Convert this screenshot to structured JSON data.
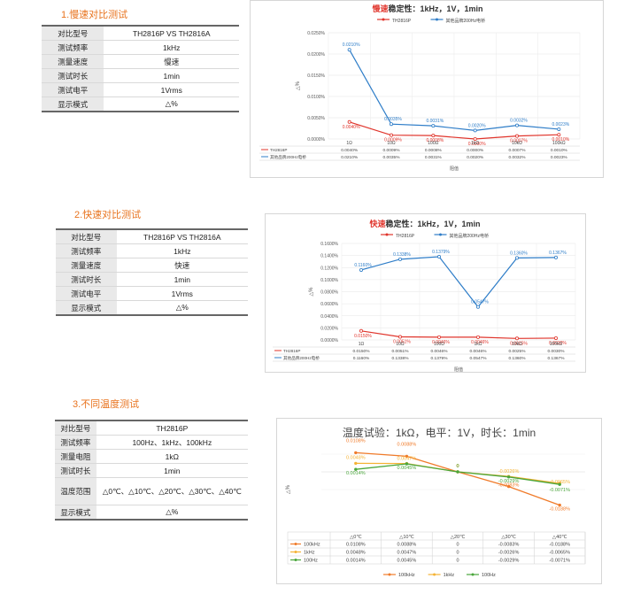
{
  "sections": [
    {
      "title": "1.慢速对比测试",
      "rows": [
        [
          "对比型号",
          "TH2816P VS TH2816A"
        ],
        [
          "测试频率",
          "1kHz"
        ],
        [
          "测量速度",
          "慢速"
        ],
        [
          "测试时长",
          "1min"
        ],
        [
          "测试电平",
          "1Vrms"
        ],
        [
          "显示模式",
          "△%"
        ]
      ]
    },
    {
      "title": "2.快速对比测试",
      "rows": [
        [
          "对比型号",
          "TH2816P VS TH2816A"
        ],
        [
          "测试频率",
          "1kHz"
        ],
        [
          "测量速度",
          "快速"
        ],
        [
          "测试时长",
          "1min"
        ],
        [
          "测试电平",
          "1Vrms"
        ],
        [
          "显示模式",
          "△%"
        ]
      ]
    },
    {
      "title": "3.不同温度测试",
      "rows": [
        [
          "对比型号",
          "TH2816P"
        ],
        [
          "测试频率",
          "100Hz、1kHz、100kHz"
        ],
        [
          "测量电阻",
          "1kΩ"
        ],
        [
          "测试时长",
          "1min"
        ],
        [
          "温度范围",
          "△0℃、△10℃、△20℃、△30℃、△40℃"
        ],
        [
          "显示模式",
          "△%"
        ]
      ]
    }
  ],
  "colors": {
    "red": "#e0342b",
    "blue": "#2e7dc8",
    "orange": "#f07b2a",
    "yellow": "#f5b335",
    "green": "#4aa63c",
    "accent": "#e8731e"
  },
  "chart_data": [
    {
      "type": "line",
      "title_red": "慢速",
      "title_rest": "稳定性：1kHz，1V，1min",
      "ylabel": "△%",
      "xlabel": "阻值",
      "categories": [
        "1Ω",
        "10Ω",
        "100Ω",
        "1kΩ",
        "10kΩ",
        "100kΩ"
      ],
      "ylim": [
        0,
        0.025
      ],
      "yticks": [
        "0.0000%",
        "0.0050%",
        "0.0100%",
        "0.0150%",
        "0.0200%",
        "0.0250%"
      ],
      "series": [
        {
          "name": "TH2816P",
          "values": [
            0.004,
            0.0009,
            0.0008,
            0.0,
            0.0007,
            0.001
          ],
          "labels": [
            "0.0040%",
            "0.0009%",
            "0.0008%",
            "0.0000%",
            "0.0007%",
            "0.0010%"
          ]
        },
        {
          "name": "其他品牌200Hz电桥",
          "values": [
            0.021,
            0.0035,
            0.0031,
            0.002,
            0.0032,
            0.0023
          ],
          "labels": [
            "0.0210%",
            "0.0035%",
            "0.0031%",
            "0.0020%",
            "0.0032%",
            "0.0023%"
          ]
        }
      ]
    },
    {
      "type": "line",
      "title_red": "快速",
      "title_rest": "稳定性：1kHz，1V，1min",
      "ylabel": "△%",
      "xlabel": "阻值",
      "categories": [
        "1Ω",
        "10Ω",
        "100Ω",
        "1kΩ",
        "10kΩ",
        "100kΩ"
      ],
      "ylim": [
        0,
        0.16
      ],
      "yticks": [
        "0.0000%",
        "0.0200%",
        "0.0400%",
        "0.0600%",
        "0.0800%",
        "0.1000%",
        "0.1200%",
        "0.1400%",
        "0.1600%"
      ],
      "series": [
        {
          "name": "TH2816P",
          "values": [
            0.015,
            0.0051,
            0.0046,
            0.0046,
            0.0025,
            0.003
          ],
          "labels": [
            "0.0150%",
            "0.0051%",
            "0.0046%",
            "0.0046%",
            "0.0025%",
            "0.0030%"
          ]
        },
        {
          "name": "其他品牌200Hz电桥",
          "values": [
            0.116,
            0.1338,
            0.1379,
            0.0547,
            0.136,
            0.1367
          ],
          "labels": [
            "0.1160%",
            "0.1338%",
            "0.1379%",
            "0.0547%",
            "0.1360%",
            "0.1367%"
          ]
        }
      ]
    },
    {
      "type": "line",
      "title": "温度试验：1kΩ，电平：1V，时长：1min",
      "ylabel": "△%",
      "categories": [
        "△0℃",
        "△10℃",
        "△20℃",
        "△30℃",
        "△40℃"
      ],
      "ylim": [
        -0.025,
        0.015
      ],
      "series": [
        {
          "name": "100kHz",
          "values": [
            0.0108,
            0.0088,
            0,
            -0.0083,
            -0.0188
          ],
          "labels": [
            "0.0108%",
            "0.0088%",
            "0",
            "-0.0083%",
            "-0.0188%"
          ]
        },
        {
          "name": "1kHz",
          "values": [
            0.0048,
            0.0047,
            0,
            -0.0026,
            -0.0065
          ],
          "labels": [
            "0.0048%",
            "0.0047%",
            "0",
            "-0.0026%",
            "-0.0065%"
          ]
        },
        {
          "name": "100Hz",
          "values": [
            0.0014,
            0.0045,
            0,
            -0.0029,
            -0.0071
          ],
          "labels": [
            "0.0014%",
            "0.0045%",
            "0",
            "-0.0029%",
            "-0.0071%"
          ]
        }
      ]
    }
  ]
}
